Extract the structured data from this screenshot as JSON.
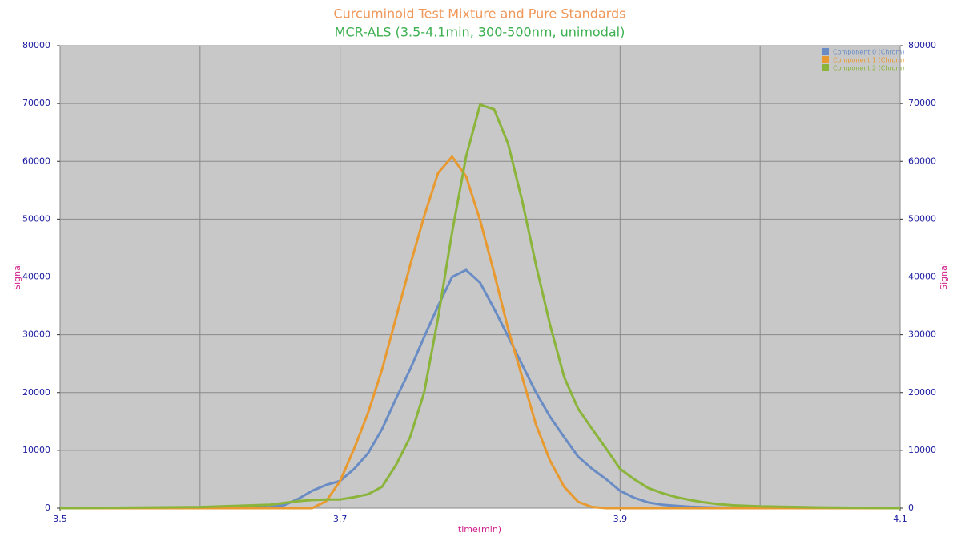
{
  "chart_data": {
    "type": "line",
    "title": "Curcuminoid Test Mixture and Pure Standards",
    "subtitle": "MCR-ALS (3.5-4.1min, 300-500nm, unimodal)",
    "x_label": "time(min)",
    "y_label": "Signal",
    "y2_label": "Signal",
    "xlim": [
      3.5,
      4.1
    ],
    "xticks": [
      3.5,
      3.7,
      3.9,
      4.1
    ],
    "xgrid": [
      3.5,
      3.6,
      3.7,
      3.8,
      3.9,
      4.0,
      4.1
    ],
    "ylim": [
      0,
      80000
    ],
    "yticks": [
      0,
      10000,
      20000,
      30000,
      40000,
      50000,
      60000,
      70000,
      80000
    ],
    "y2lim": [
      0,
      80000
    ],
    "y2ticks": [
      0,
      10000,
      20000,
      30000,
      40000,
      50000,
      60000,
      70000,
      80000
    ],
    "grid": true,
    "legend": "upper right",
    "x": [
      3.5,
      3.6,
      3.65,
      3.66,
      3.67,
      3.68,
      3.69,
      3.7,
      3.71,
      3.72,
      3.73,
      3.74,
      3.75,
      3.76,
      3.77,
      3.78,
      3.79,
      3.8,
      3.81,
      3.82,
      3.83,
      3.84,
      3.85,
      3.86,
      3.87,
      3.88,
      3.89,
      3.9,
      3.91,
      3.92,
      3.93,
      3.94,
      3.95,
      3.96,
      3.97,
      3.98,
      3.99,
      4.0,
      4.05,
      4.1
    ],
    "series": [
      {
        "name": "Component 0 (Chrom)",
        "color": "#6a8cc4",
        "values": [
          0,
          100,
          200,
          500,
          1600,
          3000,
          4000,
          4700,
          6800,
          9500,
          13700,
          19000,
          24000,
          29600,
          35000,
          40000,
          41200,
          39000,
          34500,
          29700,
          24800,
          20000,
          15800,
          12300,
          8900,
          6800,
          5000,
          3000,
          1800,
          1000,
          600,
          400,
          250,
          150,
          100,
          50,
          0,
          0,
          0,
          0
        ]
      },
      {
        "name": "Component 1 (Chrom)",
        "color": "#e89a30",
        "values": [
          0,
          0,
          0,
          0,
          0,
          0,
          1200,
          4700,
          10300,
          16500,
          24000,
          33000,
          42000,
          50500,
          58000,
          60800,
          57400,
          49800,
          40700,
          31000,
          22700,
          14400,
          8200,
          3700,
          1100,
          200,
          0,
          0,
          0,
          0,
          0,
          0,
          0,
          0,
          0,
          0,
          0,
          0,
          0,
          0
        ]
      },
      {
        "name": "Component 2 (Chrom)",
        "color": "#8ab43a",
        "values": [
          0,
          200,
          600,
          900,
          1200,
          1400,
          1500,
          1500,
          1900,
          2400,
          3700,
          7500,
          12300,
          20000,
          33000,
          47700,
          60800,
          69800,
          69000,
          63000,
          53200,
          42000,
          31700,
          22700,
          17200,
          13700,
          10300,
          6800,
          5000,
          3500,
          2600,
          1900,
          1400,
          1000,
          700,
          500,
          400,
          300,
          100,
          0
        ]
      }
    ]
  }
}
